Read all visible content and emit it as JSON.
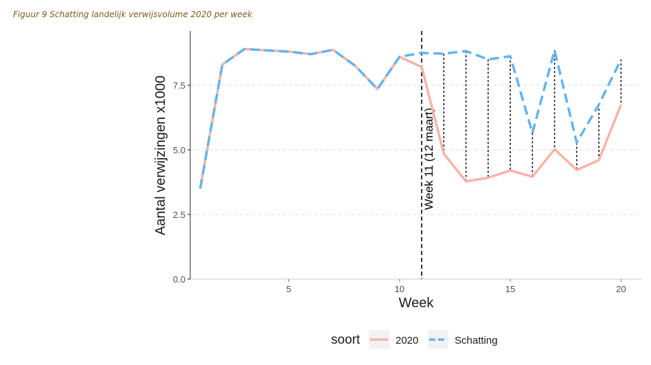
{
  "caption": "Figuur 9 Schatting landelijk verwijsvolume 2020 per week",
  "chart_data": {
    "type": "line",
    "xlabel": "Week",
    "ylabel": "Aantal verwijzingen x1000",
    "xlim": [
      0.55,
      20.95
    ],
    "ylim": [
      0,
      9.6
    ],
    "x_ticks": [
      5,
      10,
      15,
      20
    ],
    "x_tick_labels": [
      "5",
      "10",
      "15",
      "20"
    ],
    "y_ticks": [
      0,
      2.5,
      5,
      7.5
    ],
    "y_tick_labels": [
      "0.0",
      "2.5",
      "5.0",
      "7.5"
    ],
    "grid": "horizontal dashed at y ticks",
    "legend": {
      "title": "soort",
      "placement": "bottom",
      "entries": [
        {
          "label": "2020",
          "color": "#f8b3a6",
          "style": "solid"
        },
        {
          "label": "Schatting",
          "color": "#61b4ec",
          "style": "dashed"
        }
      ]
    },
    "annotation": {
      "text": "Week 11 (12 maart)",
      "x": 11
    },
    "series": [
      {
        "name": "2020",
        "color": "#f8b3a6",
        "x": [
          1,
          2,
          3,
          4,
          5,
          6,
          7,
          8,
          9,
          10,
          11,
          12,
          13,
          14,
          15,
          16,
          17,
          18,
          19,
          20
        ],
        "values": [
          3.5,
          8.3,
          8.9,
          8.85,
          8.8,
          8.7,
          8.87,
          8.25,
          7.35,
          8.6,
          8.2,
          4.85,
          3.78,
          3.92,
          4.2,
          3.96,
          5.02,
          4.22,
          4.6,
          6.75
        ]
      },
      {
        "name": "Schatting",
        "color": "#61b4ec",
        "x": [
          1,
          2,
          3,
          4,
          5,
          6,
          7,
          8,
          9,
          10,
          11,
          12,
          13,
          14,
          15,
          16,
          17,
          18,
          19,
          20
        ],
        "values": [
          3.5,
          8.3,
          8.9,
          8.85,
          8.8,
          8.7,
          8.87,
          8.25,
          7.35,
          8.6,
          8.75,
          8.72,
          8.82,
          8.5,
          8.62,
          5.65,
          8.85,
          5.28,
          6.75,
          8.5
        ]
      }
    ]
  }
}
